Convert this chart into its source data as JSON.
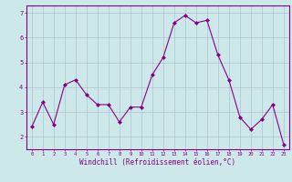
{
  "x": [
    0,
    1,
    2,
    3,
    4,
    5,
    6,
    7,
    8,
    9,
    10,
    11,
    12,
    13,
    14,
    15,
    16,
    17,
    18,
    19,
    20,
    21,
    22,
    23
  ],
  "y": [
    2.4,
    3.4,
    2.5,
    4.1,
    4.3,
    3.7,
    3.3,
    3.3,
    2.6,
    3.2,
    3.2,
    4.5,
    5.2,
    6.6,
    6.9,
    6.6,
    6.7,
    5.3,
    4.3,
    2.8,
    2.3,
    2.7,
    3.3,
    1.7
  ],
  "line_color": "#880088",
  "marker": "D",
  "marker_size": 2,
  "bg_color": "#cce8e8",
  "grid_color": "#aab8cc",
  "xlabel": "Windchill (Refroidissement éolien,°C)",
  "xlabel_color": "#880088",
  "tick_color": "#880088",
  "ylabel_ticks": [
    2,
    3,
    4,
    5,
    6,
    7
  ],
  "xlim": [
    -0.5,
    23.5
  ],
  "ylim": [
    1.5,
    7.3
  ]
}
